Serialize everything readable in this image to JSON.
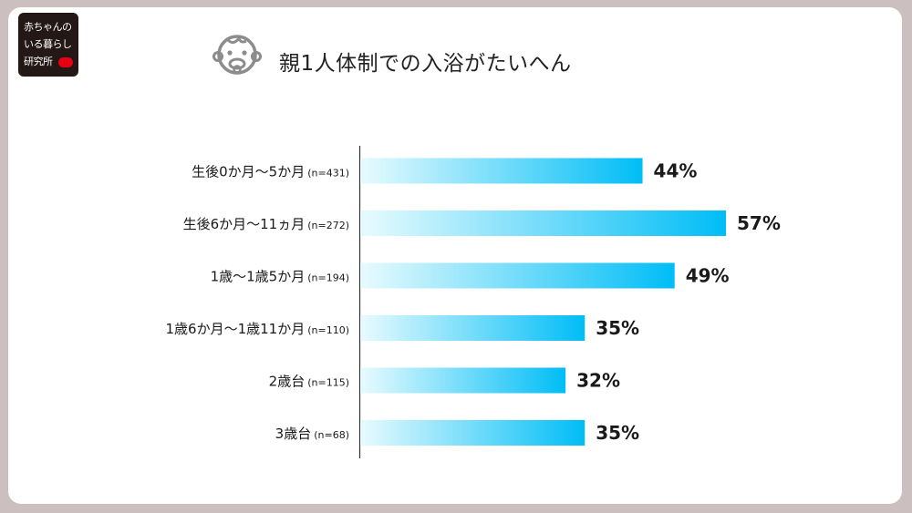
{
  "brand": {
    "lines": [
      "赤ちゃんの",
      "いる暮らし",
      "研究所"
    ]
  },
  "title_icon": "baby-face-icon",
  "colors": {
    "bar_start": "#e8fbfe",
    "bar_end": "#00bdf6",
    "background": "#cbbfbf"
  },
  "chart_data": {
    "type": "bar",
    "orientation": "horizontal",
    "title": "親1人体制での入浴がたいへん",
    "categories": [
      "生後0か月〜5か月",
      "生後6か月〜11ヵ月",
      "1歳〜1歳5か月",
      "1歳6か月〜1歳11か月",
      "2歳台",
      "3歳台"
    ],
    "sample_sizes": [
      "(n=431)",
      "(n=272)",
      "(n=194)",
      "(n=110)",
      "(n=115)",
      "(n=68)"
    ],
    "values": [
      44,
      57,
      49,
      35,
      32,
      35
    ],
    "value_labels": [
      "44%",
      "57%",
      "49%",
      "35%",
      "32%",
      "35%"
    ],
    "unit": "%",
    "xlim": [
      0,
      57
    ],
    "grid": false,
    "legend": "none"
  }
}
